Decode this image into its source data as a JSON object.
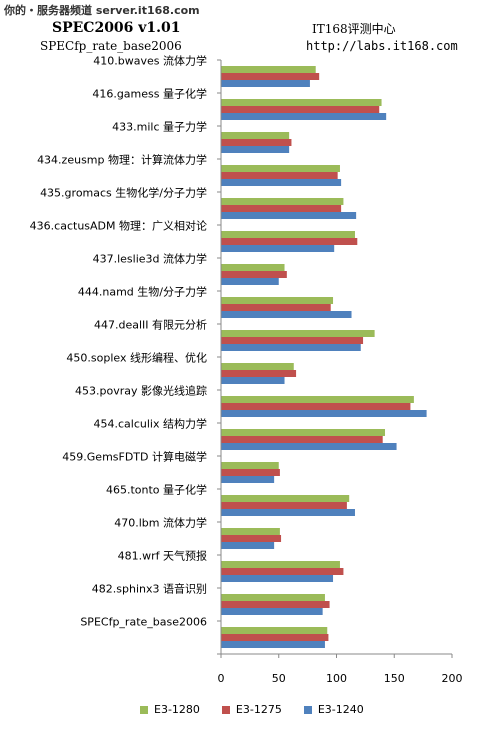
{
  "header": {
    "watermark": "你的・服务器频道 server.it168.com",
    "site_name": "IT168评测中心",
    "site_url": "http://labs.it168.com"
  },
  "chart_data": {
    "type": "bar",
    "orientation": "horizontal",
    "title": "SPEC2006 v1.01",
    "subtitle": "SPECfp_rate_base2006",
    "categories": [
      "410.bwaves 流体力学",
      "416.gamess 量子化学",
      "433.milc 量子力学",
      "434.zeusmp 物理：计算流体力学",
      "435.gromacs 生物化学/分子力学",
      "436.cactusADM 物理：广义相对论",
      "437.leslie3d 流体力学",
      "444.namd 生物/分子力学",
      "447.dealII 有限元分析",
      "450.soplex 线形编程、优化",
      "453.povray 影像光线追踪",
      "454.calculix 结构力学",
      "459.GemsFDTD 计算电磁学",
      "465.tonto 量子化学",
      "470.lbm 流体力学",
      "481.wrf 天气预报",
      "482.sphinx3 语音识别",
      "SPECfp_rate_base2006"
    ],
    "series": [
      {
        "name": "E3-1280",
        "color": "#9bbb59",
        "values": [
          82,
          139,
          59,
          103,
          106,
          116,
          55,
          97,
          133,
          63,
          167,
          142,
          50,
          111,
          51,
          103,
          90,
          92
        ]
      },
      {
        "name": "E3-1275",
        "color": "#c0504d",
        "values": [
          85,
          137,
          61,
          101,
          104,
          118,
          57,
          95,
          123,
          65,
          164,
          140,
          51,
          109,
          52,
          106,
          94,
          93
        ]
      },
      {
        "name": "E3-1240",
        "color": "#4f81bd",
        "values": [
          77,
          143,
          59,
          104,
          117,
          98,
          50,
          113,
          121,
          55,
          178,
          152,
          46,
          116,
          46,
          97,
          88,
          90
        ]
      }
    ],
    "xlim": [
      0,
      200
    ],
    "xticks": [
      "0",
      "50",
      "100",
      "150",
      "200"
    ],
    "legend_position": "bottom",
    "grid": false
  }
}
